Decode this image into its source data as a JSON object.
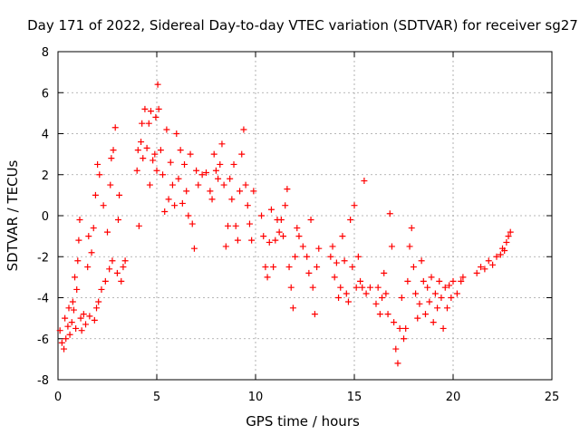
{
  "chart_data": {
    "type": "scatter",
    "title": "Day 171 of 2022, Sidereal Day-to-day VTEC variation (SDTVAR) for receiver sg27",
    "xlabel": "GPS time / hours",
    "ylabel": "SDTVAR / TECUs",
    "xlim": [
      0,
      25
    ],
    "ylim": [
      -8,
      8
    ],
    "xticks": [
      "0",
      "5",
      "10",
      "15",
      "20",
      "25"
    ],
    "yticks": [
      "-8",
      "-6",
      "-4",
      "-2",
      "0",
      "2",
      "4",
      "6",
      "8"
    ],
    "grid": true,
    "marker": "+",
    "series": [
      {
        "name": "SDTVAR",
        "color": "#ff0000",
        "points": [
          [
            0.1,
            -5.6
          ],
          [
            0.2,
            -6.2
          ],
          [
            0.3,
            -6.5
          ],
          [
            0.35,
            -5.0
          ],
          [
            0.4,
            -6.0
          ],
          [
            0.5,
            -5.4
          ],
          [
            0.55,
            -4.5
          ],
          [
            0.6,
            -5.8
          ],
          [
            0.7,
            -5.2
          ],
          [
            0.75,
            -4.2
          ],
          [
            0.8,
            -4.6
          ],
          [
            0.85,
            -3.0
          ],
          [
            0.9,
            -5.5
          ],
          [
            0.95,
            -3.6
          ],
          [
            1.0,
            -2.2
          ],
          [
            1.05,
            -1.2
          ],
          [
            1.1,
            -0.2
          ],
          [
            1.15,
            -5.0
          ],
          [
            1.2,
            -5.6
          ],
          [
            1.3,
            -4.8
          ],
          [
            1.4,
            -5.3
          ],
          [
            1.5,
            -2.5
          ],
          [
            1.55,
            -1.0
          ],
          [
            1.6,
            -4.9
          ],
          [
            1.7,
            -1.8
          ],
          [
            1.8,
            -0.6
          ],
          [
            1.85,
            -5.1
          ],
          [
            1.9,
            1.0
          ],
          [
            1.95,
            -4.5
          ],
          [
            2.0,
            2.5
          ],
          [
            2.05,
            -4.2
          ],
          [
            2.1,
            2.0
          ],
          [
            2.2,
            -3.6
          ],
          [
            2.3,
            0.5
          ],
          [
            2.4,
            -3.2
          ],
          [
            2.5,
            -0.8
          ],
          [
            2.6,
            -2.6
          ],
          [
            2.65,
            1.5
          ],
          [
            2.7,
            2.8
          ],
          [
            2.75,
            -2.2
          ],
          [
            2.8,
            3.2
          ],
          [
            2.9,
            4.3
          ],
          [
            3.0,
            -2.8
          ],
          [
            3.05,
            -0.2
          ],
          [
            3.1,
            1.0
          ],
          [
            3.2,
            -3.2
          ],
          [
            3.3,
            -2.5
          ],
          [
            3.4,
            -2.2
          ],
          [
            4.0,
            2.2
          ],
          [
            4.05,
            3.2
          ],
          [
            4.1,
            -0.5
          ],
          [
            4.2,
            3.6
          ],
          [
            4.25,
            4.5
          ],
          [
            4.3,
            2.8
          ],
          [
            4.4,
            5.2
          ],
          [
            4.5,
            3.3
          ],
          [
            4.6,
            4.5
          ],
          [
            4.65,
            1.5
          ],
          [
            4.7,
            5.1
          ],
          [
            4.8,
            2.7
          ],
          [
            4.9,
            3.0
          ],
          [
            4.95,
            4.8
          ],
          [
            5.0,
            2.2
          ],
          [
            5.05,
            6.4
          ],
          [
            5.1,
            5.2
          ],
          [
            5.2,
            3.2
          ],
          [
            5.3,
            2.0
          ],
          [
            5.4,
            0.2
          ],
          [
            5.5,
            4.2
          ],
          [
            5.6,
            0.8
          ],
          [
            5.7,
            2.6
          ],
          [
            5.8,
            1.5
          ],
          [
            5.9,
            0.5
          ],
          [
            6.0,
            4.0
          ],
          [
            6.1,
            1.8
          ],
          [
            6.2,
            3.2
          ],
          [
            6.3,
            0.6
          ],
          [
            6.4,
            2.5
          ],
          [
            6.5,
            1.2
          ],
          [
            6.6,
            0.0
          ],
          [
            6.7,
            3.0
          ],
          [
            6.8,
            -0.4
          ],
          [
            6.9,
            -1.6
          ],
          [
            7.0,
            2.2
          ],
          [
            7.1,
            1.5
          ],
          [
            7.3,
            2.0
          ],
          [
            7.5,
            2.1
          ],
          [
            7.7,
            1.2
          ],
          [
            7.8,
            0.8
          ],
          [
            7.9,
            3.0
          ],
          [
            8.0,
            2.2
          ],
          [
            8.1,
            1.8
          ],
          [
            8.2,
            2.5
          ],
          [
            8.3,
            3.5
          ],
          [
            8.4,
            1.5
          ],
          [
            8.5,
            -1.5
          ],
          [
            8.6,
            -0.5
          ],
          [
            8.7,
            1.8
          ],
          [
            8.8,
            0.8
          ],
          [
            8.9,
            2.5
          ],
          [
            9.0,
            -0.5
          ],
          [
            9.1,
            -1.2
          ],
          [
            9.2,
            1.2
          ],
          [
            9.3,
            3.0
          ],
          [
            9.4,
            4.2
          ],
          [
            9.5,
            1.5
          ],
          [
            9.6,
            0.5
          ],
          [
            9.7,
            -0.4
          ],
          [
            9.8,
            -1.2
          ],
          [
            9.9,
            1.2
          ],
          [
            10.3,
            0.0
          ],
          [
            10.4,
            -1.0
          ],
          [
            10.5,
            -2.5
          ],
          [
            10.6,
            -3.0
          ],
          [
            10.7,
            -1.3
          ],
          [
            10.8,
            0.3
          ],
          [
            10.9,
            -2.5
          ],
          [
            11.0,
            -1.2
          ],
          [
            11.1,
            -0.2
          ],
          [
            11.2,
            -0.8
          ],
          [
            11.3,
            -0.2
          ],
          [
            11.4,
            -1.0
          ],
          [
            11.5,
            0.5
          ],
          [
            11.6,
            1.3
          ],
          [
            11.7,
            -2.5
          ],
          [
            11.8,
            -3.5
          ],
          [
            11.9,
            -4.5
          ],
          [
            12.0,
            -2.0
          ],
          [
            12.1,
            -0.6
          ],
          [
            12.2,
            -1.0
          ],
          [
            12.4,
            -1.5
          ],
          [
            12.6,
            -2.0
          ],
          [
            12.7,
            -2.8
          ],
          [
            12.8,
            -0.2
          ],
          [
            12.9,
            -3.5
          ],
          [
            13.0,
            -4.8
          ],
          [
            13.1,
            -2.5
          ],
          [
            13.2,
            -1.6
          ],
          [
            13.8,
            -2.0
          ],
          [
            13.9,
            -1.5
          ],
          [
            14.0,
            -3.0
          ],
          [
            14.1,
            -2.3
          ],
          [
            14.2,
            -4.0
          ],
          [
            14.3,
            -3.5
          ],
          [
            14.4,
            -1.0
          ],
          [
            14.5,
            -2.2
          ],
          [
            14.6,
            -3.8
          ],
          [
            14.7,
            -4.2
          ],
          [
            14.8,
            -0.2
          ],
          [
            14.9,
            -2.5
          ],
          [
            15.0,
            0.5
          ],
          [
            15.1,
            -3.5
          ],
          [
            15.2,
            -2.0
          ],
          [
            15.3,
            -3.2
          ],
          [
            15.4,
            -3.5
          ],
          [
            15.5,
            1.7
          ],
          [
            15.6,
            -3.8
          ],
          [
            15.8,
            -3.5
          ],
          [
            16.1,
            -4.3
          ],
          [
            16.2,
            -3.5
          ],
          [
            16.3,
            -4.8
          ],
          [
            16.4,
            -4.0
          ],
          [
            16.5,
            -2.8
          ],
          [
            16.6,
            -3.8
          ],
          [
            16.7,
            -4.8
          ],
          [
            16.8,
            0.1
          ],
          [
            16.9,
            -1.5
          ],
          [
            17.0,
            -5.2
          ],
          [
            17.1,
            -6.5
          ],
          [
            17.2,
            -7.2
          ],
          [
            17.3,
            -5.5
          ],
          [
            17.4,
            -4.0
          ],
          [
            17.5,
            -6.0
          ],
          [
            17.6,
            -5.5
          ],
          [
            17.7,
            -3.2
          ],
          [
            17.8,
            -1.5
          ],
          [
            17.9,
            -0.6
          ],
          [
            18.0,
            -2.5
          ],
          [
            18.1,
            -3.8
          ],
          [
            18.2,
            -5.0
          ],
          [
            18.3,
            -4.3
          ],
          [
            18.4,
            -2.2
          ],
          [
            18.5,
            -3.2
          ],
          [
            18.6,
            -4.8
          ],
          [
            18.7,
            -3.5
          ],
          [
            18.8,
            -4.2
          ],
          [
            18.9,
            -3.0
          ],
          [
            19.0,
            -5.2
          ],
          [
            19.1,
            -3.8
          ],
          [
            19.2,
            -4.5
          ],
          [
            19.3,
            -3.2
          ],
          [
            19.4,
            -4.0
          ],
          [
            19.5,
            -5.5
          ],
          [
            19.6,
            -3.5
          ],
          [
            19.7,
            -4.5
          ],
          [
            19.8,
            -3.4
          ],
          [
            19.9,
            -4.0
          ],
          [
            20.0,
            -3.2
          ],
          [
            20.2,
            -3.8
          ],
          [
            20.4,
            -3.2
          ],
          [
            20.5,
            -3.0
          ],
          [
            21.2,
            -2.8
          ],
          [
            21.4,
            -2.5
          ],
          [
            21.6,
            -2.6
          ],
          [
            21.8,
            -2.2
          ],
          [
            22.0,
            -2.4
          ],
          [
            22.2,
            -2.0
          ],
          [
            22.4,
            -1.9
          ],
          [
            22.5,
            -1.6
          ],
          [
            22.6,
            -1.7
          ],
          [
            22.7,
            -1.3
          ],
          [
            22.8,
            -1.0
          ],
          [
            22.9,
            -0.8
          ]
        ]
      }
    ]
  }
}
